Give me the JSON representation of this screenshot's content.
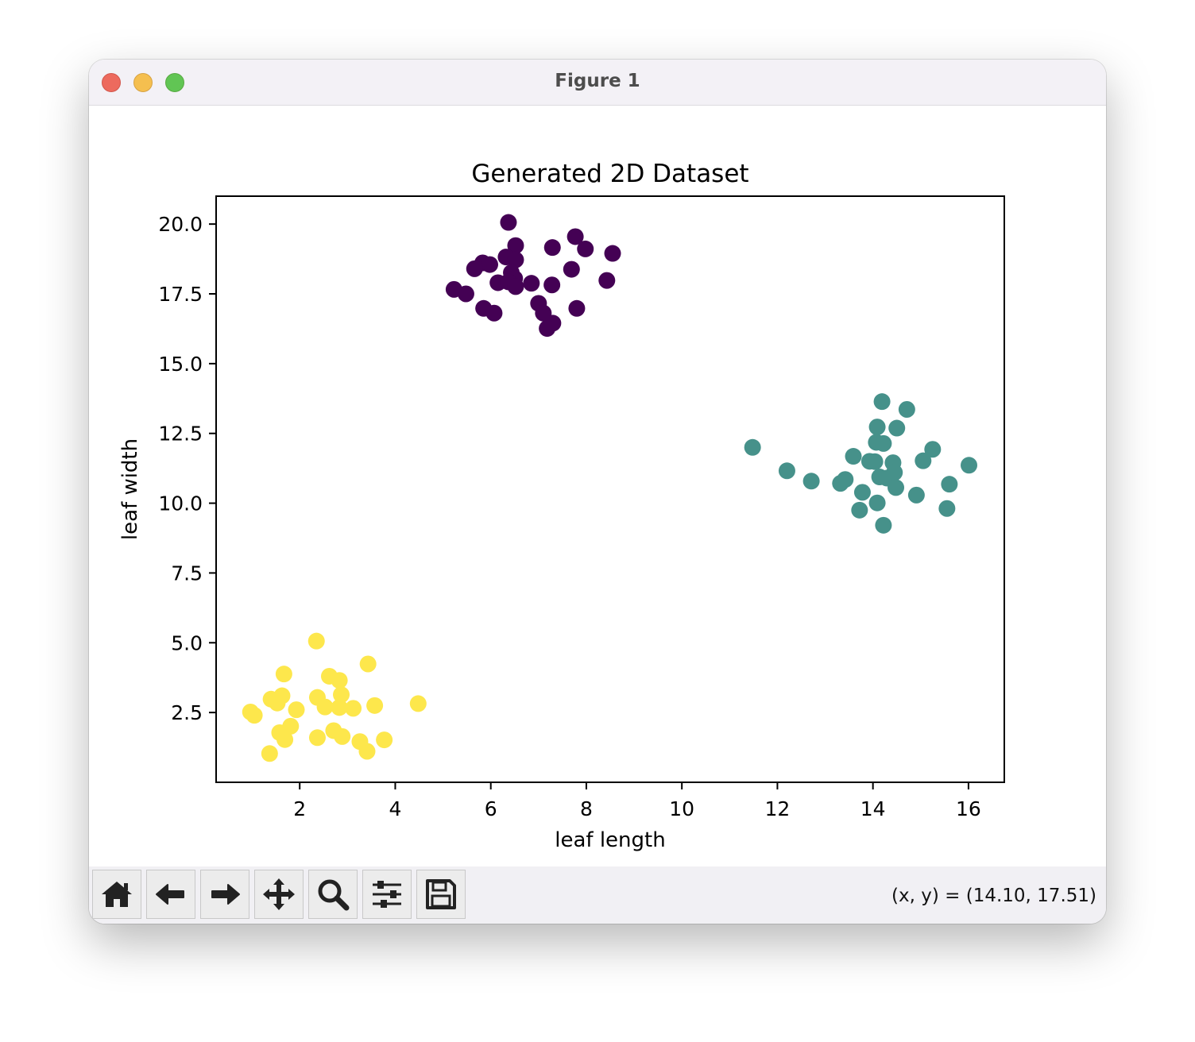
{
  "window": {
    "title": "Figure 1"
  },
  "toolbar": {
    "buttons": [
      {
        "name": "home-button",
        "icon": "home-icon"
      },
      {
        "name": "back-button",
        "icon": "arrow-left-icon"
      },
      {
        "name": "forward-button",
        "icon": "arrow-right-icon"
      },
      {
        "name": "pan-button",
        "icon": "move-icon"
      },
      {
        "name": "zoom-button",
        "icon": "magnifier-icon"
      },
      {
        "name": "configure-subplots-button",
        "icon": "sliders-icon"
      },
      {
        "name": "save-button",
        "icon": "floppy-disk-icon"
      }
    ],
    "coords": "(x, y) = (14.10, 17.51)"
  },
  "chart_data": {
    "type": "scatter",
    "title": "Generated 2D Dataset",
    "xlabel": "leaf length",
    "ylabel": "leaf width",
    "xlim": [
      0.25,
      16.75
    ],
    "ylim": [
      0.0,
      21.0
    ],
    "xticks": [
      2,
      4,
      6,
      8,
      10,
      12,
      14,
      16
    ],
    "yticks": [
      2.5,
      5.0,
      7.5,
      10.0,
      12.5,
      15.0,
      17.5,
      20.0
    ],
    "ytick_labels": [
      "2.5",
      "5.0",
      "7.5",
      "10.0",
      "12.5",
      "15.0",
      "17.5",
      "20.0"
    ],
    "grid": false,
    "colors": [
      "#440154",
      "#46918a",
      "#fde74c"
    ],
    "series": [
      {
        "color": "#440154",
        "points": [
          [
            6.37,
            20.06
          ],
          [
            7.77,
            19.55
          ],
          [
            6.52,
            19.23
          ],
          [
            7.29,
            19.16
          ],
          [
            7.98,
            19.11
          ],
          [
            8.55,
            18.95
          ],
          [
            6.32,
            18.82
          ],
          [
            6.52,
            18.72
          ],
          [
            5.83,
            18.61
          ],
          [
            5.98,
            18.55
          ],
          [
            5.66,
            18.4
          ],
          [
            6.43,
            18.26
          ],
          [
            7.69,
            18.38
          ],
          [
            6.5,
            18.05
          ],
          [
            6.15,
            17.9
          ],
          [
            6.37,
            17.93
          ],
          [
            6.52,
            17.76
          ],
          [
            6.85,
            17.88
          ],
          [
            7.28,
            17.82
          ],
          [
            8.43,
            17.98
          ],
          [
            5.23,
            17.66
          ],
          [
            5.48,
            17.5
          ],
          [
            7.0,
            17.16
          ],
          [
            5.85,
            16.98
          ],
          [
            6.07,
            16.81
          ],
          [
            7.8,
            16.98
          ],
          [
            7.1,
            16.81
          ],
          [
            7.3,
            16.45
          ],
          [
            7.18,
            16.26
          ]
        ]
      },
      {
        "color": "#46918a",
        "points": [
          [
            14.19,
            13.64
          ],
          [
            14.71,
            13.36
          ],
          [
            14.09,
            12.73
          ],
          [
            14.5,
            12.69
          ],
          [
            14.07,
            12.18
          ],
          [
            14.22,
            12.14
          ],
          [
            11.48,
            12.0
          ],
          [
            15.25,
            11.93
          ],
          [
            13.59,
            11.68
          ],
          [
            13.93,
            11.5
          ],
          [
            14.04,
            11.49
          ],
          [
            14.42,
            11.45
          ],
          [
            15.05,
            11.52
          ],
          [
            16.01,
            11.36
          ],
          [
            12.2,
            11.16
          ],
          [
            14.45,
            11.1
          ],
          [
            14.14,
            10.94
          ],
          [
            14.29,
            10.9
          ],
          [
            12.71,
            10.79
          ],
          [
            13.42,
            10.85
          ],
          [
            13.32,
            10.71
          ],
          [
            15.6,
            10.68
          ],
          [
            14.48,
            10.56
          ],
          [
            13.78,
            10.39
          ],
          [
            14.91,
            10.29
          ],
          [
            14.09,
            10.01
          ],
          [
            13.72,
            9.75
          ],
          [
            15.55,
            9.81
          ],
          [
            14.22,
            9.21
          ]
        ]
      },
      {
        "color": "#fde74c",
        "points": [
          [
            2.35,
            5.06
          ],
          [
            3.43,
            4.24
          ],
          [
            1.67,
            3.88
          ],
          [
            2.62,
            3.8
          ],
          [
            2.83,
            3.65
          ],
          [
            2.87,
            3.14
          ],
          [
            1.63,
            3.1
          ],
          [
            1.4,
            2.98
          ],
          [
            2.37,
            3.04
          ],
          [
            1.53,
            2.84
          ],
          [
            3.57,
            2.75
          ],
          [
            4.48,
            2.82
          ],
          [
            2.53,
            2.7
          ],
          [
            2.83,
            2.68
          ],
          [
            3.12,
            2.65
          ],
          [
            1.93,
            2.6
          ],
          [
            0.97,
            2.52
          ],
          [
            1.05,
            2.4
          ],
          [
            1.81,
            2.01
          ],
          [
            1.58,
            1.78
          ],
          [
            2.71,
            1.85
          ],
          [
            2.89,
            1.64
          ],
          [
            1.69,
            1.53
          ],
          [
            2.37,
            1.6
          ],
          [
            3.26,
            1.46
          ],
          [
            3.77,
            1.52
          ],
          [
            3.41,
            1.11
          ],
          [
            1.37,
            1.03
          ]
        ]
      }
    ]
  }
}
